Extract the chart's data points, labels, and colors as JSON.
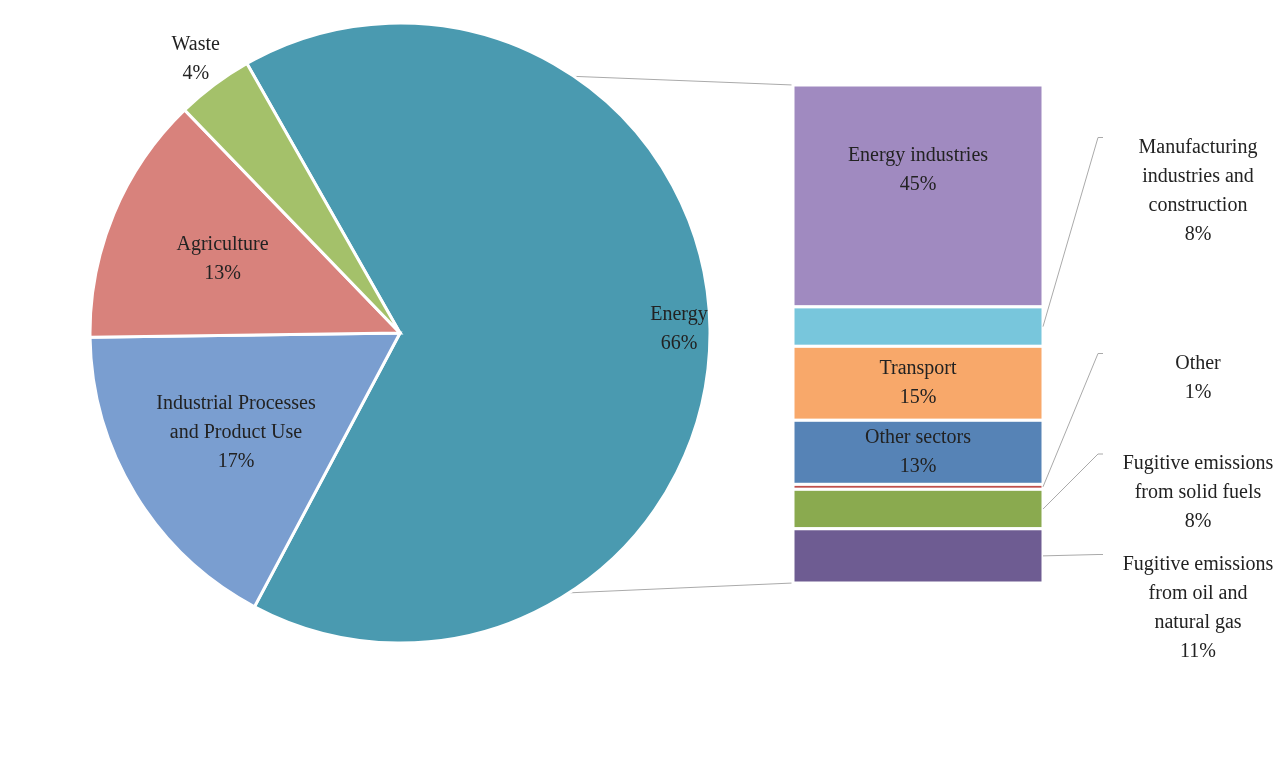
{
  "chart_data": [
    {
      "type": "pie",
      "categories": [
        "Energy",
        "Industrial Processes and Product Use",
        "Agriculture",
        "Waste"
      ],
      "values": [
        66,
        17,
        13,
        4
      ],
      "value_labels": [
        "66%",
        "17%",
        "13%",
        "4%"
      ],
      "colors": [
        "#4a9ab0",
        "#7a9ed0",
        "#d8827c",
        "#a4c16a"
      ]
    },
    {
      "type": "other",
      "categories": [
        "Energy industries",
        "Manufacturing industries and construction",
        "Transport",
        "Other sectors",
        "Other",
        "Fugitive emissions from solid fuels",
        "Fugitive emissions from oil and natural gas"
      ],
      "values": [
        45,
        8,
        15,
        13,
        1,
        8,
        11
      ],
      "value_labels": [
        "45%",
        "8%",
        "15%",
        "13%",
        "1%",
        "8%",
        "11%"
      ],
      "colors": [
        "#a08ac0",
        "#78c6dc",
        "#f8a86a",
        "#5683b6",
        "#c0504d",
        "#8aaa4f",
        "#6e5c92"
      ]
    }
  ]
}
